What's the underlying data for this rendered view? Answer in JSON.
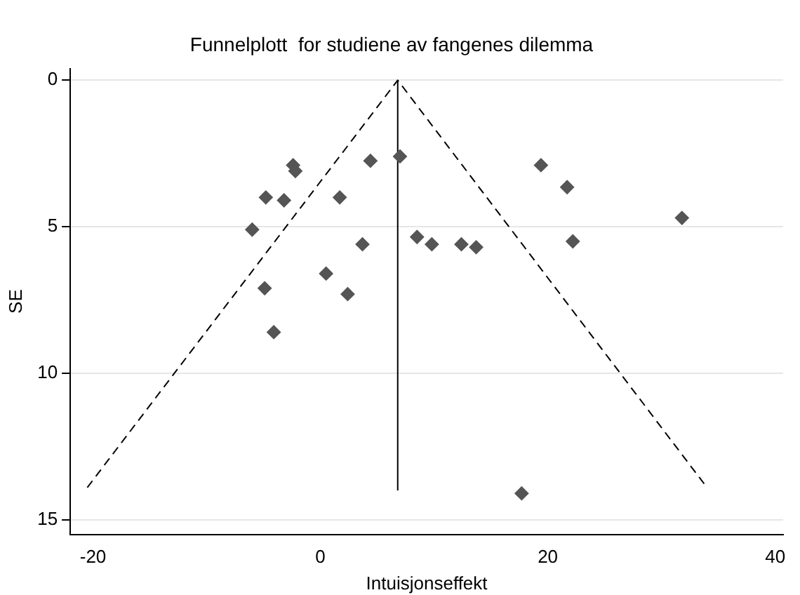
{
  "chart_data": {
    "type": "scatter",
    "title": "Funnelplott  for studiene av fangenes dilemma",
    "xlabel": "Intuisjonseffekt",
    "ylabel": "SE",
    "xlim": [
      -22,
      40.7
    ],
    "xticks": [
      -20,
      0,
      20,
      40
    ],
    "ylim": [
      15.5,
      -0.4
    ],
    "yticks": [
      0,
      5,
      10,
      15
    ],
    "grid": "y",
    "legend": false,
    "series": [
      {
        "marker": "diamond",
        "color": "#555555",
        "x": [
          7.0,
          4.4,
          -2.4,
          -2.2,
          -4.8,
          -3.2,
          1.7,
          -6.0,
          3.7,
          -4.9,
          0.5,
          2.4,
          -4.1,
          19.4,
          21.7,
          31.8,
          8.5,
          9.8,
          12.4,
          13.7,
          22.2,
          17.7
        ],
        "values": [
          2.6,
          2.75,
          2.9,
          3.1,
          4.0,
          4.1,
          4.0,
          5.1,
          5.6,
          7.1,
          6.6,
          7.3,
          8.6,
          2.9,
          3.65,
          4.7,
          5.35,
          5.6,
          5.6,
          5.7,
          5.5,
          14.1
        ]
      },
      {
        "type": "line",
        "marker": "none",
        "color": "#000000",
        "line_style": "solid",
        "x": [
          6.8,
          6.8
        ],
        "values": [
          14,
          0
        ]
      },
      {
        "type": "line",
        "marker": "none",
        "color": "#000000",
        "line_style": "dashed",
        "x": [
          -20.5,
          6.8,
          34.0
        ],
        "values": [
          13.9,
          0,
          13.9
        ]
      }
    ]
  }
}
